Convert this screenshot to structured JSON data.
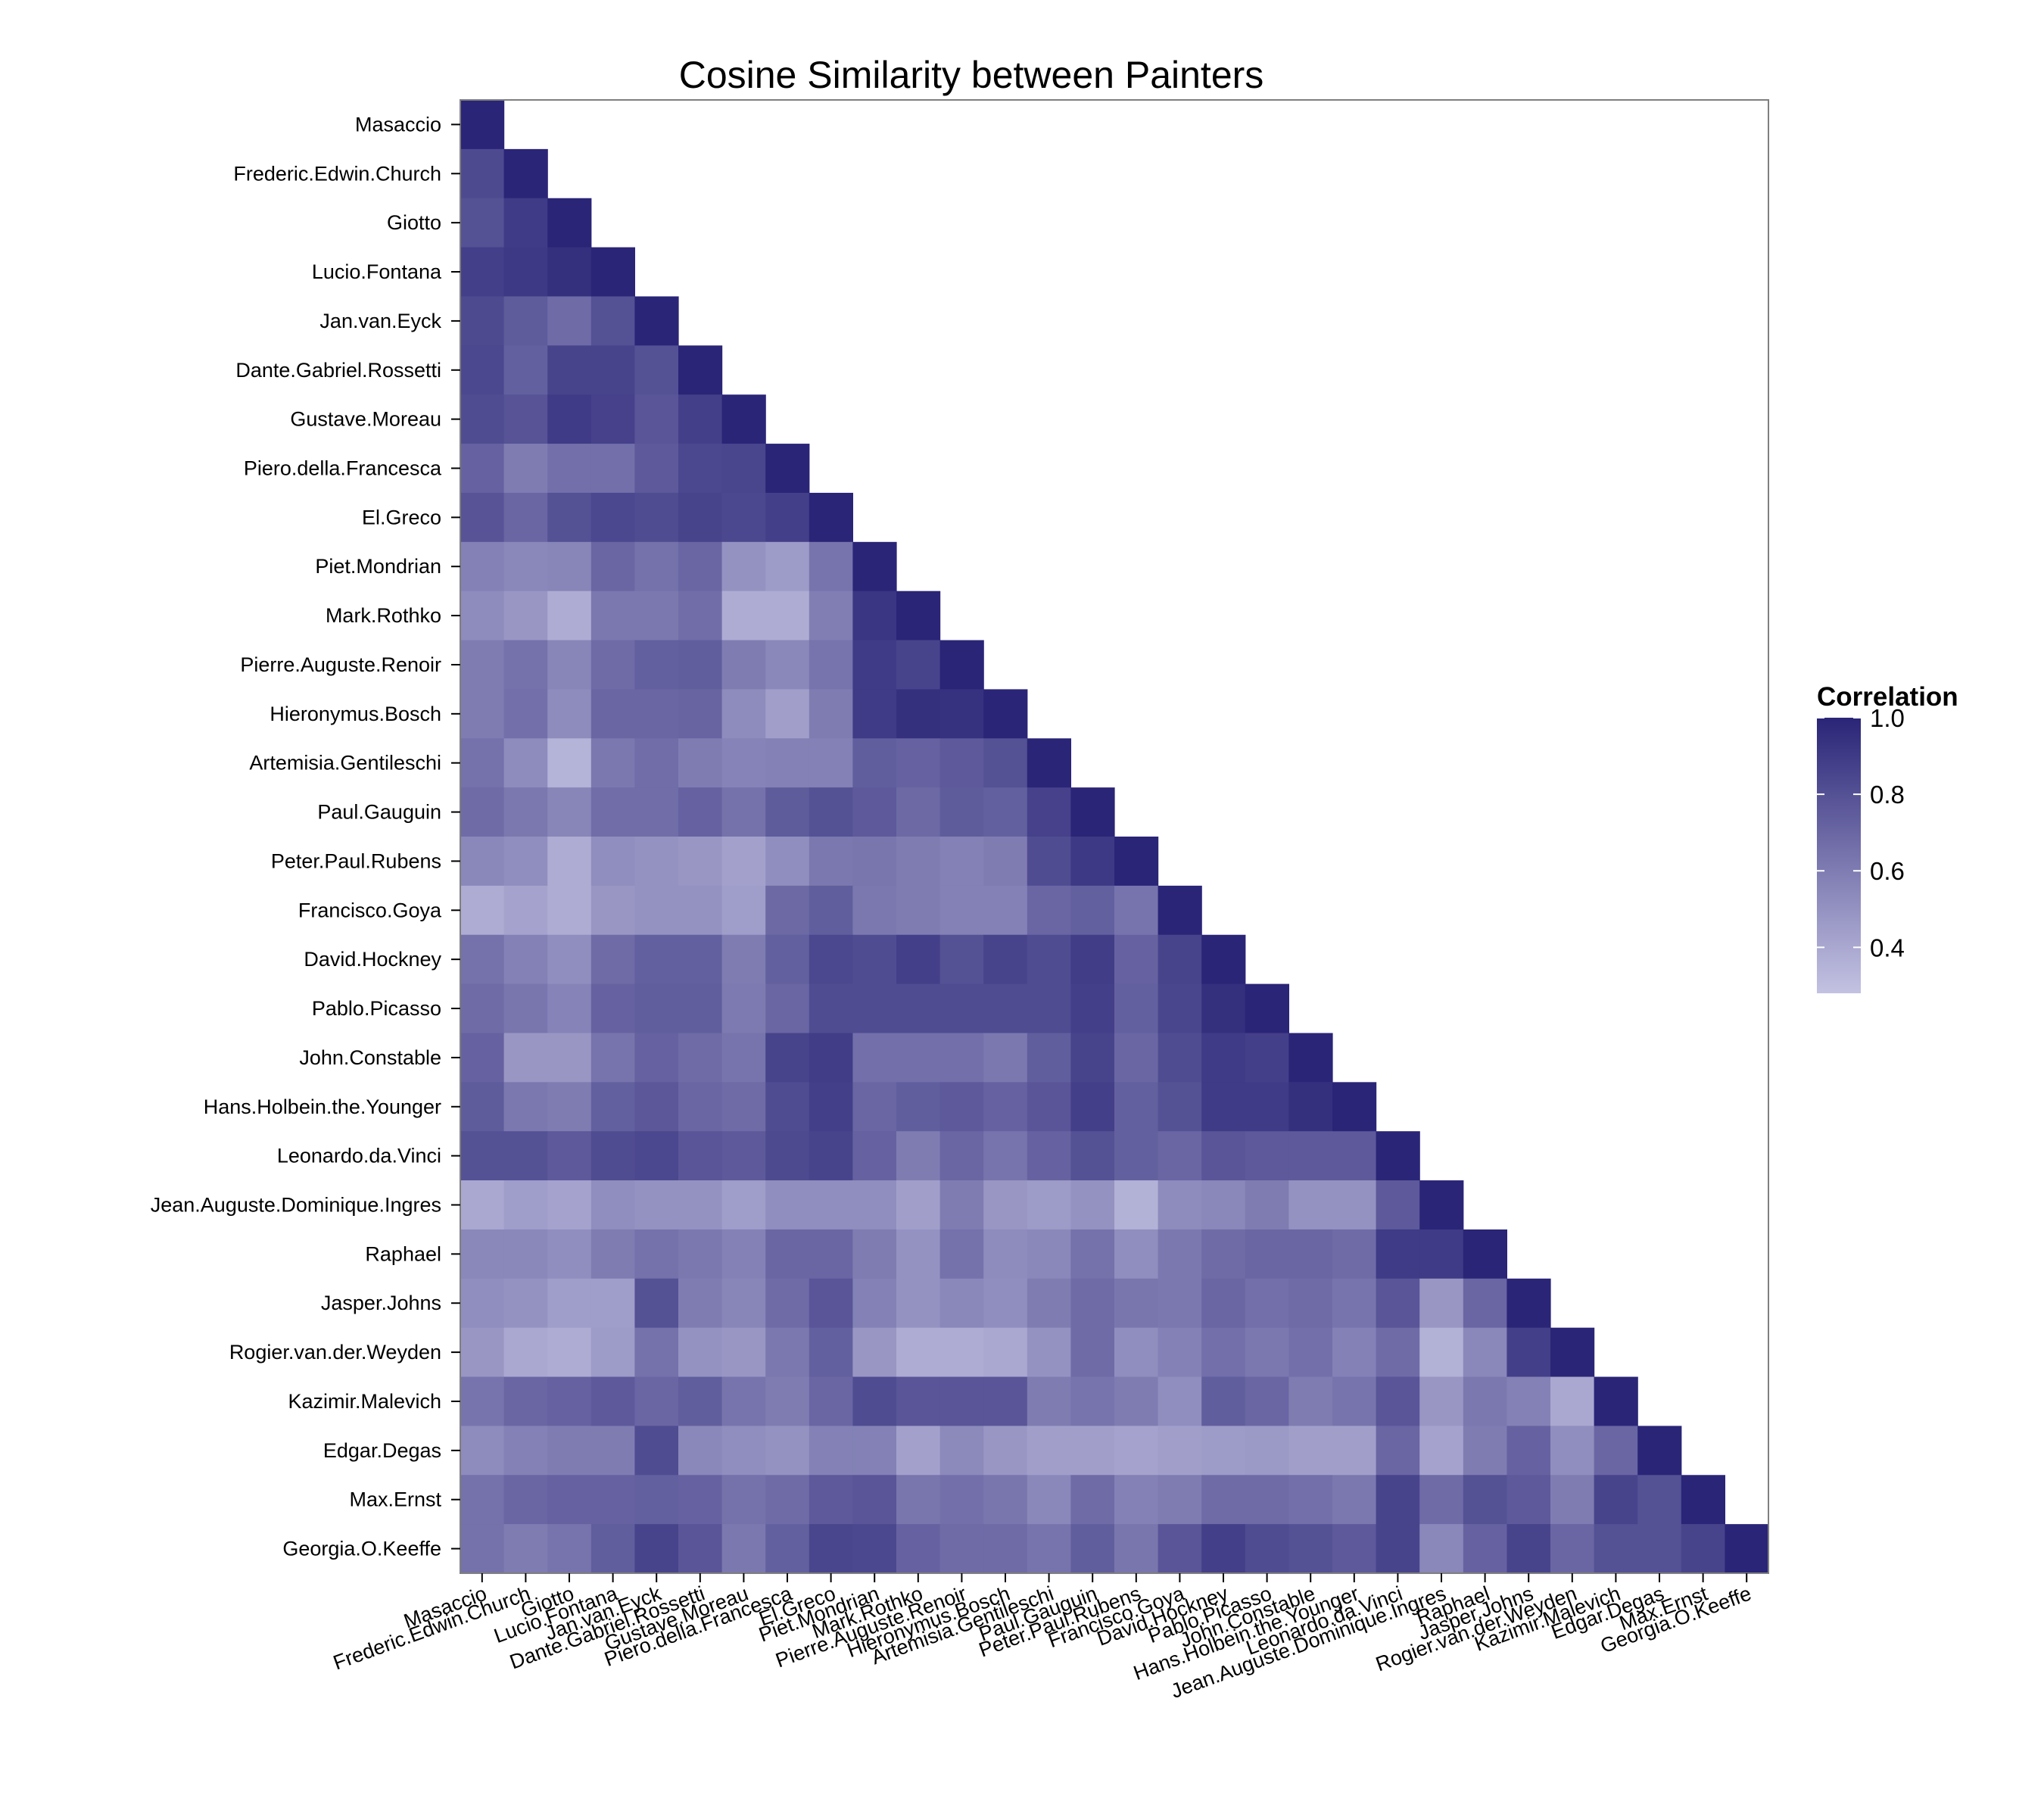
{
  "chart_data": {
    "type": "heatmap",
    "title": "Cosine Similarity between Painters",
    "xlabel": "",
    "ylabel": "",
    "painters": [
      "Masaccio",
      "Frederic.Edwin.Church",
      "Giotto",
      "Lucio.Fontana",
      "Jan.van.Eyck",
      "Dante.Gabriel.Rossetti",
      "Gustave.Moreau",
      "Piero.della.Francesca",
      "El.Greco",
      "Piet.Mondrian",
      "Mark.Rothko",
      "Pierre.Auguste.Renoir",
      "Hieronymus.Bosch",
      "Artemisia.Gentileschi",
      "Paul.Gauguin",
      "Peter.Paul.Rubens",
      "Francisco.Goya",
      "David.Hockney",
      "Pablo.Picasso",
      "John.Constable",
      "Hans.Holbein.the.Younger",
      "Leonardo.da.Vinci",
      "Jean.Auguste.Dominique.Ingres",
      "Raphael",
      "Jasper.Johns",
      "Rogier.van.der.Weyden",
      "Kazimir.Malevich",
      "Edgar.Degas",
      "Max.Ernst",
      "Georgia.O.Keeffe"
    ],
    "matrix": [
      [
        1.0
      ],
      [
        0.83,
        1.0
      ],
      [
        0.8,
        0.9,
        1.0
      ],
      [
        0.88,
        0.91,
        0.95,
        1.0
      ],
      [
        0.83,
        0.75,
        0.68,
        0.8,
        1.0
      ],
      [
        0.84,
        0.73,
        0.86,
        0.86,
        0.8,
        1.0
      ],
      [
        0.82,
        0.79,
        0.9,
        0.87,
        0.78,
        0.88,
        1.0
      ],
      [
        0.72,
        0.6,
        0.66,
        0.66,
        0.76,
        0.84,
        0.85,
        1.0
      ],
      [
        0.79,
        0.7,
        0.8,
        0.84,
        0.82,
        0.86,
        0.84,
        0.88,
        1.0
      ],
      [
        0.58,
        0.55,
        0.56,
        0.7,
        0.65,
        0.7,
        0.5,
        0.46,
        0.64,
        1.0
      ],
      [
        0.53,
        0.48,
        0.38,
        0.62,
        0.62,
        0.67,
        0.38,
        0.38,
        0.59,
        0.92,
        1.0
      ],
      [
        0.6,
        0.65,
        0.56,
        0.68,
        0.73,
        0.74,
        0.6,
        0.55,
        0.64,
        0.9,
        0.86,
        1.0
      ],
      [
        0.6,
        0.66,
        0.53,
        0.7,
        0.7,
        0.71,
        0.53,
        0.44,
        0.6,
        0.9,
        0.95,
        0.94,
        1.0
      ],
      [
        0.65,
        0.53,
        0.35,
        0.62,
        0.67,
        0.6,
        0.57,
        0.58,
        0.58,
        0.74,
        0.72,
        0.76,
        0.8,
        1.0
      ],
      [
        0.68,
        0.62,
        0.56,
        0.67,
        0.67,
        0.72,
        0.65,
        0.75,
        0.8,
        0.76,
        0.69,
        0.75,
        0.73,
        0.87,
        1.0
      ],
      [
        0.55,
        0.52,
        0.38,
        0.52,
        0.5,
        0.48,
        0.43,
        0.52,
        0.62,
        0.63,
        0.6,
        0.58,
        0.6,
        0.82,
        0.91,
        1.0
      ],
      [
        0.38,
        0.42,
        0.38,
        0.48,
        0.5,
        0.5,
        0.45,
        0.69,
        0.74,
        0.62,
        0.6,
        0.58,
        0.58,
        0.7,
        0.73,
        0.64,
        1.0
      ],
      [
        0.65,
        0.58,
        0.52,
        0.68,
        0.73,
        0.73,
        0.6,
        0.73,
        0.84,
        0.82,
        0.88,
        0.8,
        0.86,
        0.82,
        0.89,
        0.72,
        0.86,
        1.0
      ],
      [
        0.68,
        0.63,
        0.57,
        0.72,
        0.74,
        0.74,
        0.61,
        0.7,
        0.82,
        0.82,
        0.82,
        0.82,
        0.82,
        0.82,
        0.88,
        0.73,
        0.85,
        0.95,
        1.0
      ],
      [
        0.72,
        0.48,
        0.48,
        0.64,
        0.72,
        0.68,
        0.64,
        0.86,
        0.89,
        0.66,
        0.66,
        0.66,
        0.62,
        0.74,
        0.86,
        0.7,
        0.82,
        0.9,
        0.88,
        1.0
      ],
      [
        0.75,
        0.62,
        0.6,
        0.73,
        0.77,
        0.7,
        0.68,
        0.82,
        0.88,
        0.7,
        0.74,
        0.76,
        0.72,
        0.78,
        0.88,
        0.73,
        0.8,
        0.9,
        0.9,
        0.95,
        1.0
      ],
      [
        0.8,
        0.8,
        0.76,
        0.82,
        0.84,
        0.78,
        0.76,
        0.83,
        0.86,
        0.72,
        0.6,
        0.7,
        0.64,
        0.72,
        0.8,
        0.73,
        0.7,
        0.78,
        0.76,
        0.76,
        0.76,
        1.0
      ],
      [
        0.4,
        0.45,
        0.42,
        0.52,
        0.5,
        0.5,
        0.45,
        0.52,
        0.52,
        0.52,
        0.44,
        0.6,
        0.48,
        0.46,
        0.5,
        0.36,
        0.53,
        0.55,
        0.6,
        0.5,
        0.5,
        0.76,
        1.0
      ],
      [
        0.55,
        0.55,
        0.52,
        0.6,
        0.65,
        0.62,
        0.58,
        0.7,
        0.7,
        0.6,
        0.5,
        0.65,
        0.53,
        0.55,
        0.65,
        0.52,
        0.62,
        0.68,
        0.7,
        0.7,
        0.68,
        0.9,
        0.9,
        1.0
      ],
      [
        0.52,
        0.5,
        0.45,
        0.45,
        0.8,
        0.6,
        0.56,
        0.68,
        0.78,
        0.58,
        0.5,
        0.55,
        0.52,
        0.6,
        0.68,
        0.63,
        0.62,
        0.7,
        0.66,
        0.68,
        0.64,
        0.78,
        0.48,
        0.7,
        1.0
      ],
      [
        0.48,
        0.4,
        0.38,
        0.46,
        0.65,
        0.5,
        0.48,
        0.62,
        0.73,
        0.48,
        0.38,
        0.38,
        0.4,
        0.5,
        0.68,
        0.52,
        0.58,
        0.66,
        0.62,
        0.66,
        0.58,
        0.68,
        0.36,
        0.55,
        0.88,
        1.0
      ],
      [
        0.64,
        0.7,
        0.72,
        0.76,
        0.7,
        0.74,
        0.64,
        0.6,
        0.7,
        0.82,
        0.78,
        0.78,
        0.78,
        0.6,
        0.64,
        0.6,
        0.52,
        0.74,
        0.7,
        0.6,
        0.64,
        0.78,
        0.48,
        0.62,
        0.58,
        0.4,
        1.0
      ],
      [
        0.53,
        0.58,
        0.6,
        0.6,
        0.82,
        0.55,
        0.52,
        0.5,
        0.58,
        0.58,
        0.43,
        0.54,
        0.48,
        0.44,
        0.44,
        0.42,
        0.44,
        0.46,
        0.47,
        0.44,
        0.44,
        0.7,
        0.42,
        0.6,
        0.72,
        0.52,
        0.7,
        1.0
      ],
      [
        0.65,
        0.7,
        0.72,
        0.72,
        0.73,
        0.72,
        0.65,
        0.68,
        0.76,
        0.78,
        0.63,
        0.66,
        0.63,
        0.55,
        0.68,
        0.58,
        0.6,
        0.68,
        0.68,
        0.66,
        0.62,
        0.86,
        0.68,
        0.8,
        0.76,
        0.6,
        0.86,
        0.8,
        1.0
      ],
      [
        0.65,
        0.6,
        0.64,
        0.74,
        0.86,
        0.78,
        0.62,
        0.73,
        0.85,
        0.84,
        0.72,
        0.68,
        0.68,
        0.64,
        0.74,
        0.63,
        0.78,
        0.88,
        0.82,
        0.8,
        0.76,
        0.86,
        0.55,
        0.72,
        0.86,
        0.7,
        0.8,
        0.8,
        0.86,
        1.0
      ]
    ],
    "color_min": "#c3c2e2",
    "color_max": "#2a2577",
    "legend": {
      "title": "Correlation",
      "position": "right",
      "range": [
        0.28,
        1.0
      ],
      "ticks": [
        "1.0",
        "0.8",
        "0.6",
        "0.4"
      ],
      "tick_values": [
        1.0,
        0.8,
        0.6,
        0.4
      ]
    },
    "grid": false
  }
}
